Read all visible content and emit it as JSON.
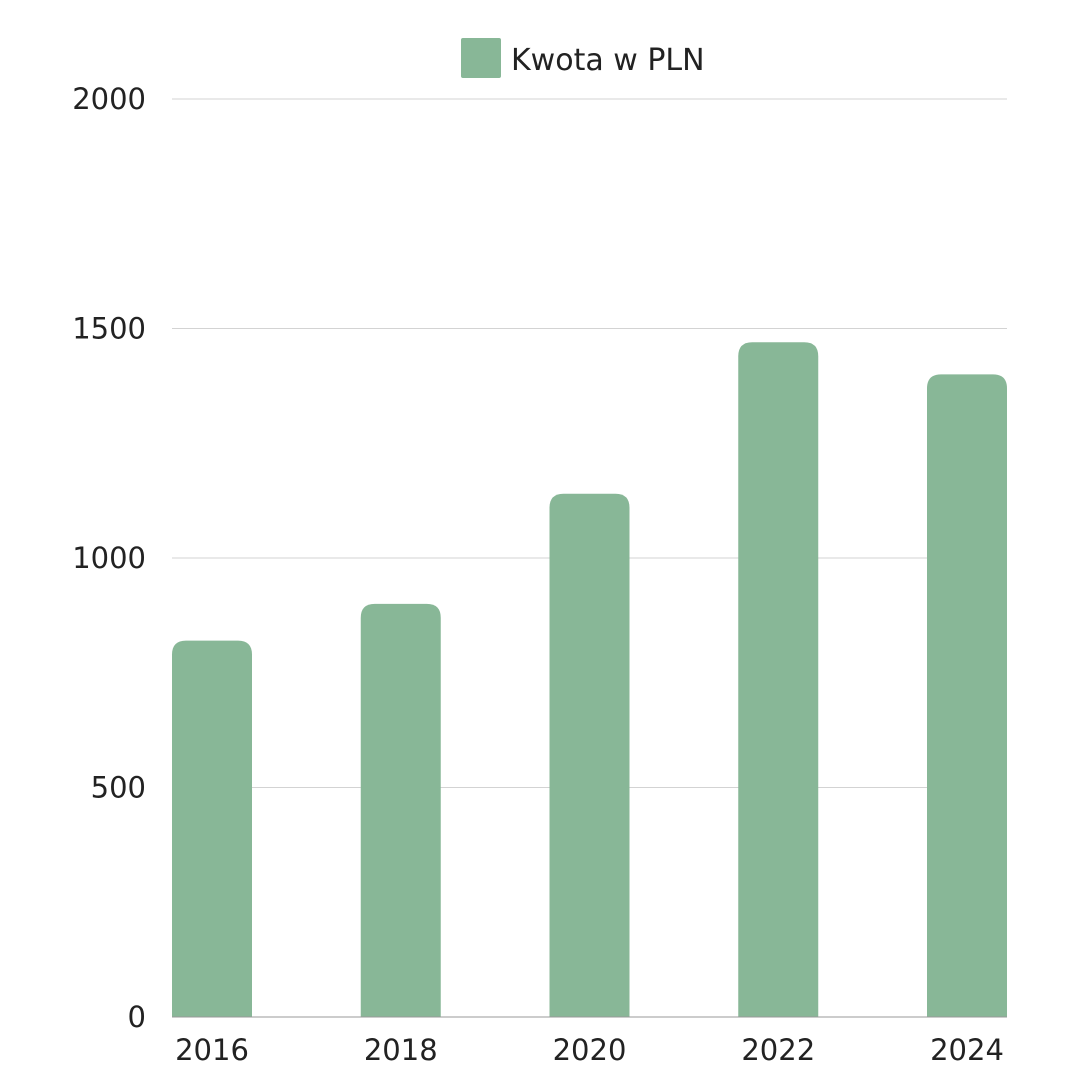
{
  "chart_data": {
    "type": "bar",
    "title": "",
    "xlabel": "",
    "ylabel": "",
    "categories": [
      "2016",
      "2018",
      "2020",
      "2022",
      "2024"
    ],
    "series": [
      {
        "name": "Kwota w PLN",
        "values": [
          820,
          900,
          1140,
          1470,
          1400
        ],
        "color": "#88b797"
      }
    ],
    "ylim": [
      0,
      2000
    ],
    "yticks": [
      "0",
      "500",
      "1000",
      "1500",
      "2000"
    ],
    "grid": true,
    "legend_position": "top-center",
    "gridline_color": "#d3d3d3",
    "axis_color": "#999999"
  }
}
